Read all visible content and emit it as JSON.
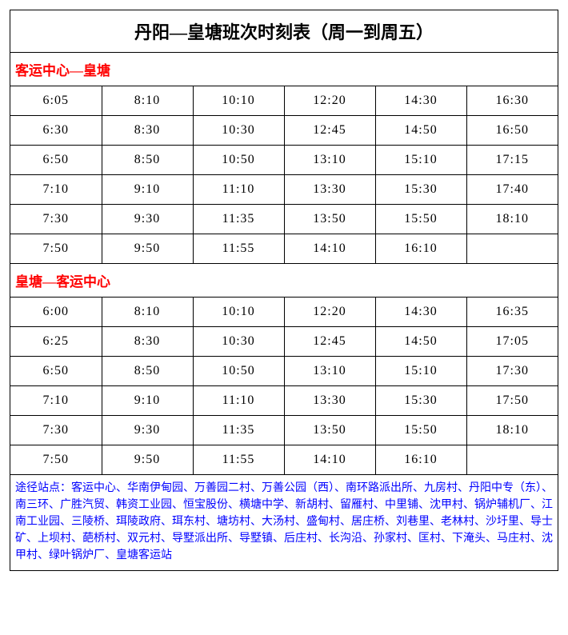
{
  "title": "丹阳—皇塘班次时刻表（周一到周五）",
  "sections": [
    {
      "header": "客运中心—皇塘",
      "rows": [
        [
          "6:05",
          "8:10",
          "10:10",
          "12:20",
          "14:30",
          "16:30"
        ],
        [
          "6:30",
          "8:30",
          "10:30",
          "12:45",
          "14:50",
          "16:50"
        ],
        [
          "6:50",
          "8:50",
          "10:50",
          "13:10",
          "15:10",
          "17:15"
        ],
        [
          "7:10",
          "9:10",
          "11:10",
          "13:30",
          "15:30",
          "17:40"
        ],
        [
          "7:30",
          "9:30",
          "11:35",
          "13:50",
          "15:50",
          "18:10"
        ],
        [
          "7:50",
          "9:50",
          "11:55",
          "14:10",
          "16:10",
          ""
        ]
      ]
    },
    {
      "header": "皇塘—客运中心",
      "rows": [
        [
          "6:00",
          "8:10",
          "10:10",
          "12:20",
          "14:30",
          "16:35"
        ],
        [
          "6:25",
          "8:30",
          "10:30",
          "12:45",
          "14:50",
          "17:05"
        ],
        [
          "6:50",
          "8:50",
          "10:50",
          "13:10",
          "15:10",
          "17:30"
        ],
        [
          "7:10",
          "9:10",
          "11:10",
          "13:30",
          "15:30",
          "17:50"
        ],
        [
          "7:30",
          "9:30",
          "11:35",
          "13:50",
          "15:50",
          "18:10"
        ],
        [
          "7:50",
          "9:50",
          "11:55",
          "14:10",
          "16:10",
          ""
        ]
      ]
    }
  ],
  "footer_note": "途径站点：客运中心、华南伊甸园、万善园二村、万善公园（西）、南环路派出所、九房村、丹阳中专（东）、南三环、广胜汽贸、韩资工业园、恒宝股份、横塘中学、新胡村、留雁村、中里铺、沈甲村、锅炉辅机厂、江南工业园、三陵桥、珥陵政府、珥东村、塘坊村、大汤村、盛甸村、居庄桥、刘巷里、老林村、沙圩里、导士矿、上坝村、葩桥村、双元村、导墅派出所、导墅镇、后庄村、长沟沿、孙家村、匡村、下淹头、马庄村、沈甲村、绿叶锅炉厂、皇塘客运站",
  "colors": {
    "header_text": "#ff0000",
    "footer_text": "#0000ff",
    "border": "#000000",
    "background": "#ffffff"
  }
}
